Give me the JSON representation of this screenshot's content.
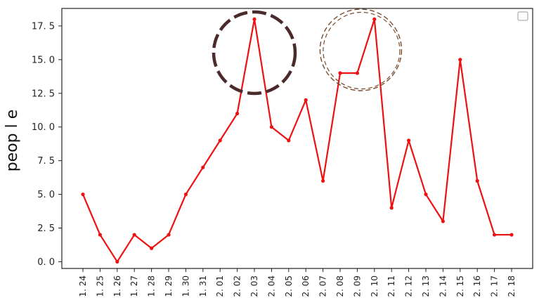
{
  "chart_data": {
    "type": "line",
    "title": "",
    "xlabel": "",
    "ylabel": "peop l e",
    "categories": [
      "1. 24",
      "1. 25",
      "1. 26",
      "1. 27",
      "1. 28",
      "1. 29",
      "1. 30",
      "1. 31",
      "2. 01",
      "2. 02",
      "2. 03",
      "2. 04",
      "2. 05",
      "2. 06",
      "2. 07",
      "2. 08",
      "2. 09",
      "2. 10",
      "2. 11",
      "2. 12",
      "2. 13",
      "2. 14",
      "2. 15",
      "2. 16",
      "2. 17",
      "2. 18"
    ],
    "series": [
      {
        "name": "people",
        "color": "#ee1111",
        "values": [
          5,
          2,
          0,
          2,
          1,
          2,
          5,
          7,
          9,
          11,
          18,
          10,
          9,
          12,
          6,
          14,
          14,
          18,
          4,
          9,
          5,
          3,
          15,
          6,
          2,
          2
        ]
      }
    ],
    "ylim": [
      -0.5,
      18.8
    ],
    "yticks": [
      0.0,
      2.5,
      5.0,
      7.5,
      10.0,
      12.5,
      15.0,
      17.5
    ],
    "ytick_labels": [
      "0. 0",
      "2. 5",
      "5. 0",
      "7. 5",
      "10. 0",
      "12. 5",
      "15. 0",
      "17. 5"
    ],
    "grid": false,
    "legend": {
      "position": "top-right",
      "entries": [
        ""
      ]
    },
    "annotations": [
      {
        "type": "circle",
        "around": "2. 03",
        "style": "heavy-dashed",
        "color": "#4a2a2a"
      },
      {
        "type": "circle",
        "around": "2. 09",
        "style": "double-dashed",
        "color": "#7a4a2a"
      }
    ]
  }
}
